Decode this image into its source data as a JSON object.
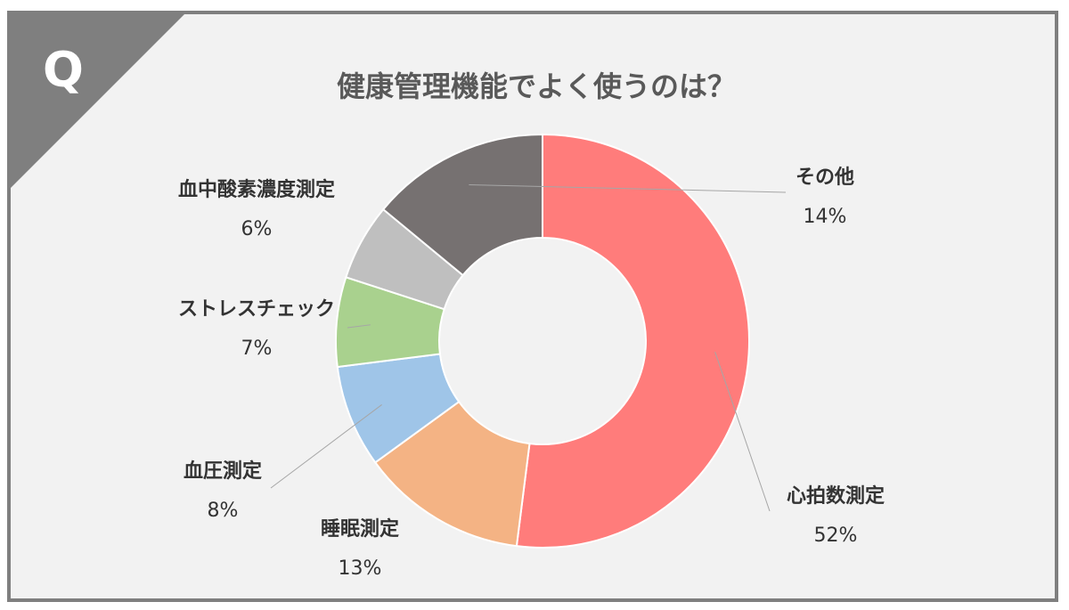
{
  "q_badge": "Q",
  "chart_data": {
    "type": "pie",
    "style": "donut",
    "title": "健康管理機能でよく使うのは？",
    "slices": [
      {
        "label": "心拍数測定",
        "value": 52,
        "value_label": "52%",
        "color": "#ff7c7b"
      },
      {
        "label": "睡眠測定",
        "value": 13,
        "value_label": "13%",
        "color": "#f4b384"
      },
      {
        "label": "血圧測定",
        "value": 8,
        "value_label": "8%",
        "color": "#9fc5e8"
      },
      {
        "label": "ストレスチェック",
        "value": 7,
        "value_label": "7%",
        "color": "#a9d18e"
      },
      {
        "label": "血中酸素濃度測定",
        "value": 6,
        "value_label": "6%",
        "color": "#bfbfbf"
      },
      {
        "label": "その他",
        "value": 14,
        "value_label": "14%",
        "color": "#767171"
      }
    ]
  }
}
